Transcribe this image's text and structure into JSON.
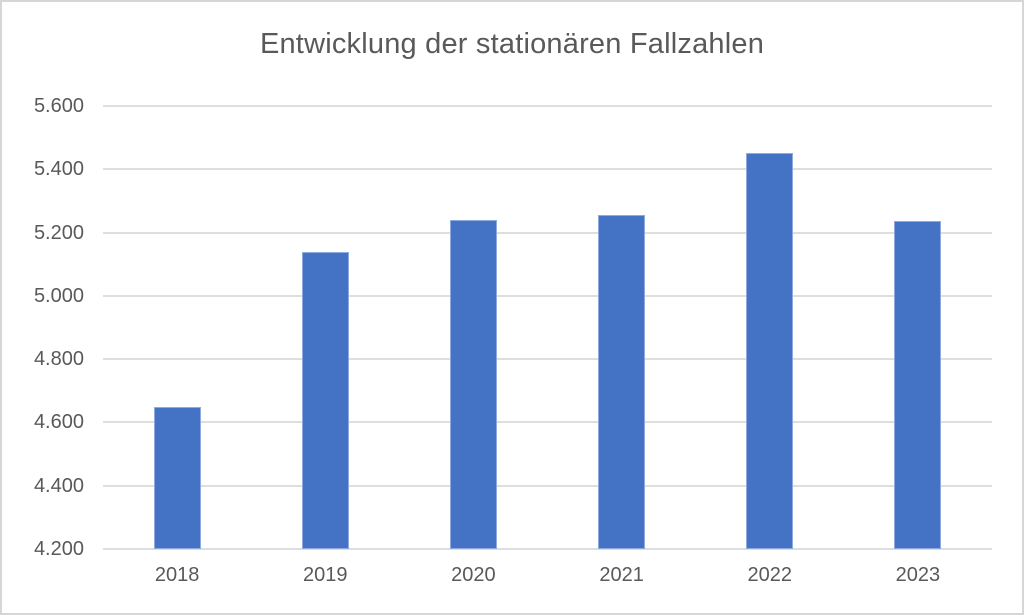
{
  "window": {
    "background": "#ffffff",
    "frame_border_color": "#d6d6d6"
  },
  "chart_data": {
    "type": "bar",
    "title": "Entwicklung der stationären Fallzahlen",
    "categories": [
      "2018",
      "2019",
      "2020",
      "2021",
      "2022",
      "2023"
    ],
    "values": [
      4650,
      5140,
      5240,
      5255,
      5450,
      5235
    ],
    "xlabel": "",
    "ylabel": "",
    "ylim": [
      4200,
      5600
    ],
    "ytick_step": 200,
    "ytick_labels": [
      "4.200",
      "4.400",
      "4.600",
      "4.800",
      "5.000",
      "5.200",
      "5.400",
      "5.600"
    ],
    "grid": true,
    "legend": "none",
    "bar_color": "#4472C4",
    "bar_border_color": "#8FAADC",
    "gridline_color": "#DEDEDE",
    "text_color": "#595959"
  }
}
